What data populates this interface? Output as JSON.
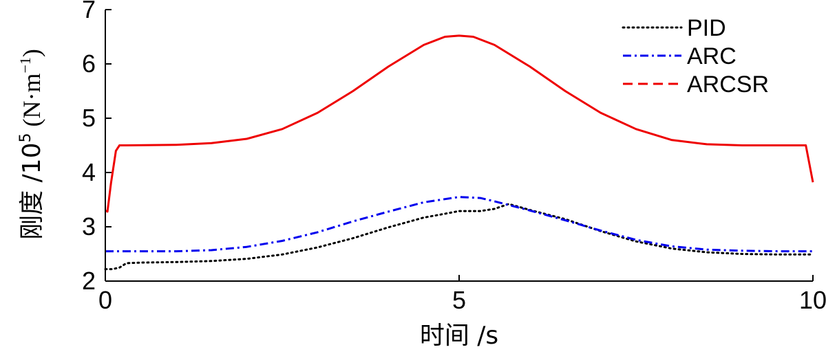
{
  "chart_data": {
    "type": "line",
    "xlabel": "时间 /s",
    "ylabel": {
      "prefix": "刚度 /10",
      "exp": "5",
      "unit_open": " (N·m",
      "unit_exp": "−1",
      "unit_close": ")"
    },
    "xlim": [
      0,
      10
    ],
    "ylim": [
      2,
      7
    ],
    "xticks": [
      0,
      5,
      10
    ],
    "xtick_labels": [
      "0",
      "5",
      "10"
    ],
    "yticks": [
      2,
      3,
      4,
      5,
      6,
      7
    ],
    "ytick_labels": [
      "2",
      "3",
      "4",
      "5",
      "6",
      "7"
    ],
    "grid": false,
    "legend_position": "top-right",
    "series": [
      {
        "name": "PID",
        "color": "#000000",
        "style": "dotted",
        "x": [
          0,
          0.1,
          0.2,
          0.3,
          0.5,
          1,
          1.5,
          2,
          2.5,
          3,
          3.5,
          4,
          4.5,
          4.8,
          5,
          5.3,
          5.5,
          5.7,
          6,
          6.5,
          7,
          7.5,
          8,
          8.5,
          9,
          9.5,
          10
        ],
        "y": [
          2.22,
          2.22,
          2.25,
          2.33,
          2.34,
          2.35,
          2.37,
          2.41,
          2.49,
          2.62,
          2.79,
          2.99,
          3.17,
          3.24,
          3.29,
          3.29,
          3.33,
          3.42,
          3.31,
          3.14,
          2.92,
          2.73,
          2.6,
          2.53,
          2.5,
          2.49,
          2.49
        ]
      },
      {
        "name": "ARC",
        "color": "#0000ee",
        "style": "dashdot",
        "x": [
          0,
          0.5,
          1,
          1.5,
          2,
          2.5,
          3,
          3.5,
          4,
          4.5,
          5,
          5.3,
          5.5,
          6,
          6.5,
          7,
          7.5,
          8,
          8.5,
          9,
          9.5,
          10
        ],
        "y": [
          2.55,
          2.55,
          2.55,
          2.57,
          2.63,
          2.74,
          2.9,
          3.1,
          3.28,
          3.45,
          3.55,
          3.53,
          3.47,
          3.3,
          3.12,
          2.93,
          2.76,
          2.64,
          2.58,
          2.56,
          2.55,
          2.55
        ]
      },
      {
        "name": "ARCSR",
        "color": "#ee0000",
        "style": "dashed",
        "x": [
          0,
          0.03,
          0.08,
          0.15,
          0.2,
          0.3,
          1,
          1.5,
          2,
          2.5,
          3,
          3.5,
          4,
          4.5,
          4.8,
          5,
          5.2,
          5.5,
          6,
          6.5,
          7,
          7.5,
          8,
          8.5,
          9,
          9.5,
          9.9,
          10
        ],
        "y": [
          3.3,
          3.28,
          3.8,
          4.4,
          4.5,
          4.5,
          4.51,
          4.54,
          4.62,
          4.8,
          5.1,
          5.5,
          5.95,
          6.35,
          6.5,
          6.52,
          6.5,
          6.35,
          5.95,
          5.5,
          5.1,
          4.8,
          4.6,
          4.52,
          4.5,
          4.5,
          4.5,
          3.82
        ]
      }
    ]
  }
}
